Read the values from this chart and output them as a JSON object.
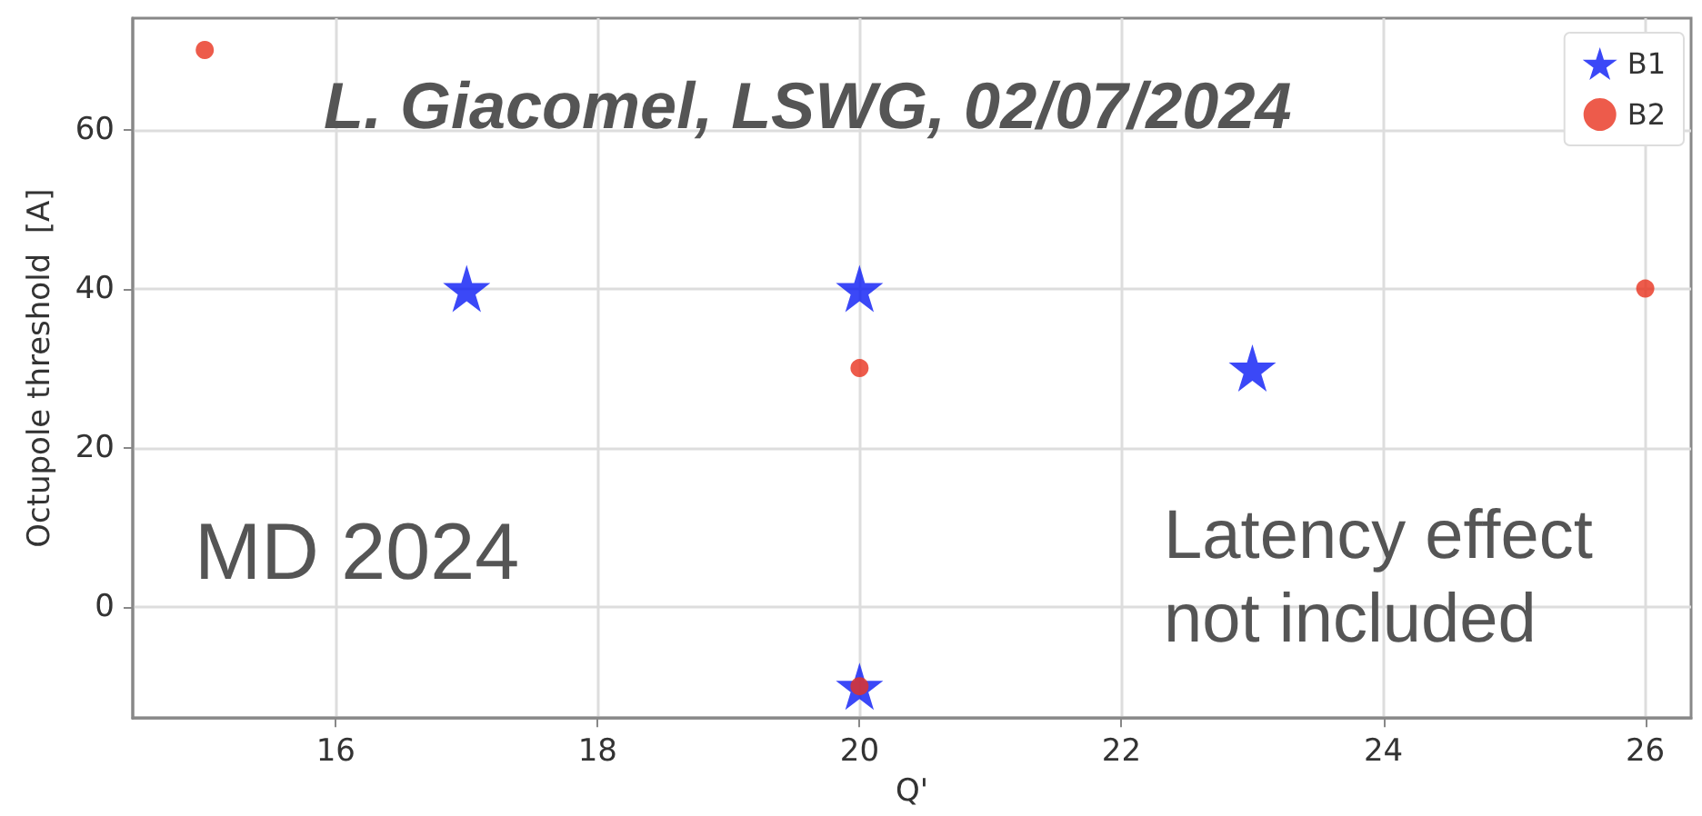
{
  "chart_data": {
    "type": "scatter",
    "xlabel": "Q'",
    "ylabel": "Octupole threshold  [A]",
    "annotations": [
      "L. Giacomel, LSWG, 02/07/2024",
      "MD 2024",
      "Latency effect not included"
    ],
    "series": [
      {
        "name": "B1",
        "color": "#0a1af5",
        "marker": "star",
        "x": [
          17,
          20,
          20,
          23
        ],
        "values": [
          40,
          40,
          -10,
          30
        ]
      },
      {
        "name": "B2",
        "color": "#e8321e",
        "marker": "circle",
        "x": [
          15,
          20,
          20,
          26
        ],
        "values": [
          70,
          30,
          -10,
          40
        ]
      }
    ],
    "xlim": [
      14.45,
      26.35
    ],
    "xticks": [
      16,
      18,
      20,
      22,
      24,
      26
    ],
    "ylim": [
      -14,
      74
    ],
    "yticks": [
      0,
      20,
      40,
      60
    ],
    "grid": true,
    "legend": "top right"
  }
}
